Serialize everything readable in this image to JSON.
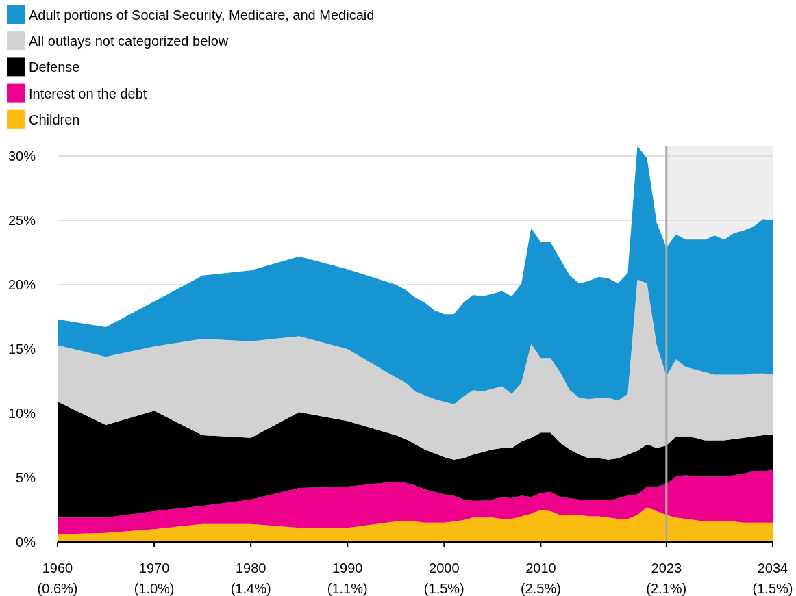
{
  "chart_data": {
    "type": "area",
    "stacked": true,
    "legend": "top left",
    "grid": "y",
    "x": [
      1960,
      1965,
      1970,
      1975,
      1980,
      1985,
      1990,
      1995,
      1996,
      1997,
      1998,
      1999,
      2000,
      2001,
      2002,
      2003,
      2004,
      2005,
      2006,
      2007,
      2008,
      2009,
      2010,
      2011,
      2012,
      2013,
      2014,
      2015,
      2016,
      2017,
      2018,
      2019,
      2020,
      2021,
      2022,
      2023,
      2024,
      2025,
      2026,
      2027,
      2028,
      2029,
      2030,
      2031,
      2032,
      2033,
      2034
    ],
    "xlim": [
      1960,
      2034
    ],
    "xticks": [
      1960,
      1970,
      1980,
      1990,
      2000,
      2010,
      2023,
      2034
    ],
    "annotations": [
      "(0.6%)",
      "(1.0%)",
      "(1.4%)",
      "(1.1%)",
      "(1.5%)",
      "(2.5%)",
      "(2.1%)",
      "(1.5%)"
    ],
    "ylim": [
      0,
      30.8
    ],
    "yticks": [
      {
        "value": 0,
        "label": "0%"
      },
      {
        "value": 5,
        "label": "5%"
      },
      {
        "value": 10,
        "label": "10%"
      },
      {
        "value": 15,
        "label": "15%"
      },
      {
        "value": 20,
        "label": "20%"
      },
      {
        "value": 25,
        "label": "25%"
      },
      {
        "value": 30,
        "label": "30%"
      }
    ],
    "series": [
      {
        "name": "Children",
        "color": "#fbbc12",
        "values": [
          0.6,
          0.7,
          1.0,
          1.4,
          1.4,
          1.1,
          1.1,
          1.6,
          1.6,
          1.6,
          1.5,
          1.5,
          1.5,
          1.6,
          1.7,
          1.9,
          1.9,
          1.9,
          1.8,
          1.8,
          2.0,
          2.2,
          2.5,
          2.4,
          2.1,
          2.1,
          2.1,
          2.0,
          2.0,
          1.9,
          1.8,
          1.8,
          2.1,
          2.7,
          2.4,
          2.1,
          1.9,
          1.8,
          1.7,
          1.6,
          1.6,
          1.6,
          1.6,
          1.5,
          1.5,
          1.5,
          1.5
        ]
      },
      {
        "name": "Interest on the debt",
        "color": "#ec008c",
        "values": [
          1.3,
          1.2,
          1.4,
          1.4,
          1.9,
          3.1,
          3.2,
          3.1,
          3.0,
          2.8,
          2.6,
          2.4,
          2.2,
          2.0,
          1.6,
          1.3,
          1.3,
          1.4,
          1.7,
          1.6,
          1.6,
          1.3,
          1.3,
          1.5,
          1.4,
          1.3,
          1.2,
          1.3,
          1.3,
          1.3,
          1.6,
          1.8,
          1.6,
          1.6,
          1.9,
          2.4,
          3.2,
          3.4,
          3.4,
          3.5,
          3.5,
          3.5,
          3.6,
          3.8,
          4.0,
          4.0,
          4.1
        ]
      },
      {
        "name": "Defense",
        "color": "#000000",
        "values": [
          9.0,
          7.2,
          7.8,
          5.5,
          4.8,
          5.9,
          5.1,
          3.6,
          3.4,
          3.2,
          3.1,
          3.0,
          2.9,
          2.8,
          3.2,
          3.6,
          3.8,
          3.9,
          3.8,
          3.9,
          4.2,
          4.6,
          4.7,
          4.6,
          4.2,
          3.8,
          3.5,
          3.2,
          3.2,
          3.2,
          3.1,
          3.2,
          3.4,
          3.3,
          3.0,
          3.0,
          3.1,
          3.0,
          3.0,
          2.8,
          2.8,
          2.8,
          2.8,
          2.8,
          2.7,
          2.8,
          2.7
        ]
      },
      {
        "name": "All outlays not categorized below",
        "color": "#d2d2d2",
        "values": [
          4.4,
          5.3,
          5.0,
          7.5,
          7.5,
          5.9,
          5.6,
          4.5,
          4.4,
          4.1,
          4.2,
          4.2,
          4.3,
          4.3,
          4.8,
          5.0,
          4.7,
          4.7,
          4.8,
          4.2,
          4.6,
          7.3,
          5.8,
          5.8,
          5.5,
          4.6,
          4.4,
          4.6,
          4.7,
          4.8,
          4.5,
          4.7,
          13.3,
          12.5,
          8.0,
          5.4,
          6.0,
          5.4,
          5.3,
          5.3,
          5.1,
          5.1,
          5.0,
          4.9,
          4.9,
          4.8,
          4.7
        ]
      },
      {
        "name": "Adult portions of Social Security, Medicare, and Medicaid",
        "color": "#1795d2",
        "values": [
          2.0,
          2.3,
          3.5,
          4.9,
          5.5,
          6.2,
          6.2,
          7.2,
          7.2,
          7.3,
          7.2,
          6.9,
          6.8,
          7.0,
          7.3,
          7.4,
          7.4,
          7.4,
          7.4,
          7.6,
          7.7,
          9.0,
          9.0,
          9.0,
          8.8,
          8.9,
          8.9,
          9.2,
          9.4,
          9.3,
          9.1,
          9.4,
          10.4,
          9.7,
          9.5,
          10.0,
          9.7,
          9.9,
          10.1,
          10.3,
          10.8,
          10.5,
          11.0,
          11.2,
          11.4,
          12.0,
          12.0
        ]
      }
    ],
    "bands": [
      {
        "axis": "x",
        "from": 2023,
        "to": 2034,
        "color": "#efefef"
      }
    ],
    "ref_lines": [
      {
        "axis": "x",
        "value": 2023,
        "color": "#aaaaaa"
      }
    ]
  }
}
